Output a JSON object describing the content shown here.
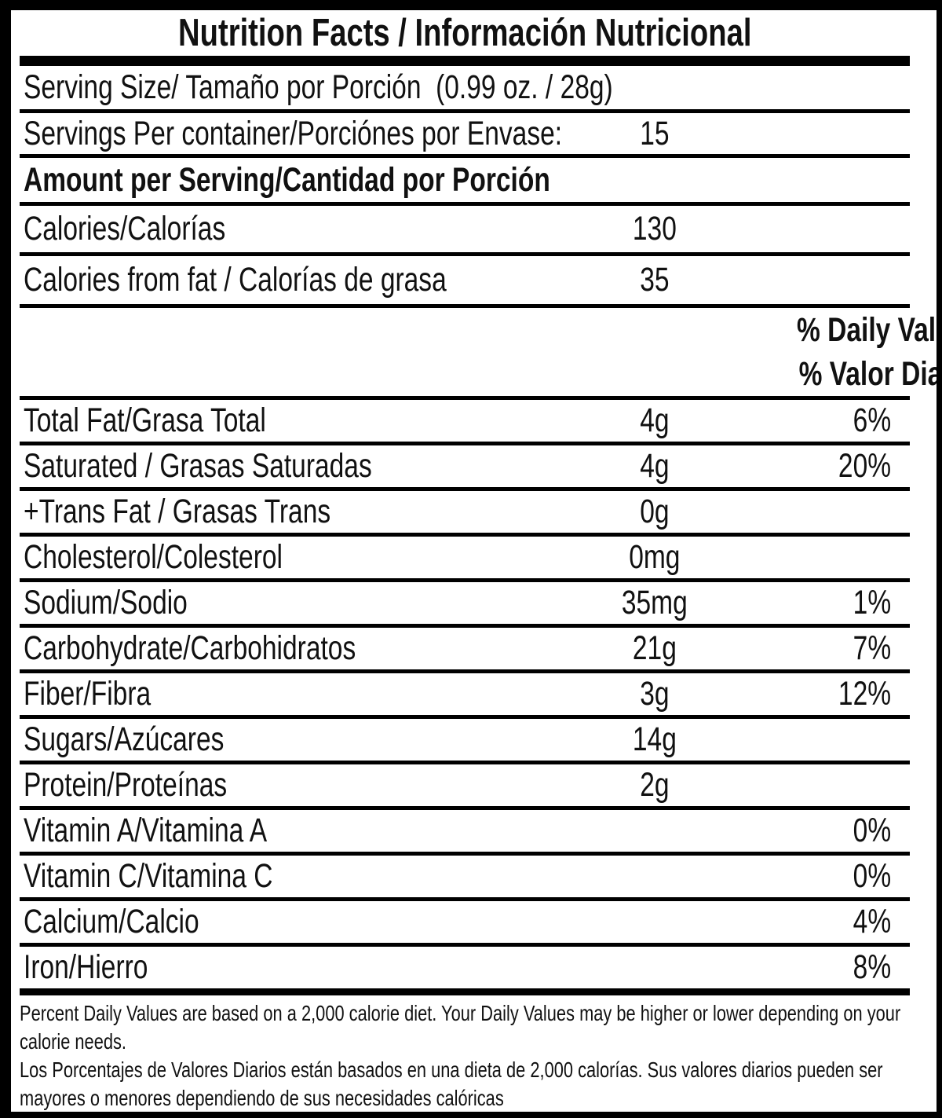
{
  "title": "Nutrition Facts / Información Nutricional",
  "serving": {
    "size": "Serving Size/ Tamaño por Porción  (0.99 oz. / 28g)",
    "per_container_label": "Servings Per container/Porciónes por Envase:",
    "per_container_value": "15"
  },
  "amount_per_serving_heading": "Amount per Serving/Cantidad por Porción",
  "calories": {
    "label": "Calories/Calorías",
    "value": "130"
  },
  "calories_from_fat": {
    "label": "Calories from fat / Calorías de grasa",
    "value": "35"
  },
  "daily_value_header": {
    "en": "% Daily Value",
    "es": "% Valor Diario"
  },
  "nutrients": [
    {
      "label": "Total Fat/Grasa Total",
      "amount": "4g",
      "percent": "6%"
    },
    {
      "label": "Saturated / Grasas Saturadas",
      "amount": "4g",
      "percent": "20%"
    },
    {
      "label": "+Trans Fat / Grasas Trans",
      "amount": "0g",
      "percent": ""
    },
    {
      "label": "Cholesterol/Colesterol",
      "amount": "0mg",
      "percent": ""
    },
    {
      "label": "Sodium/Sodio",
      "amount": "35mg",
      "percent": "1%"
    },
    {
      "label": "Carbohydrate/Carbohidratos",
      "amount": "21g",
      "percent": "7%"
    },
    {
      "label": "Fiber/Fibra",
      "amount": "3g",
      "percent": "12%"
    },
    {
      "label": "Sugars/Azúcares",
      "amount": "14g",
      "percent": ""
    },
    {
      "label": "Protein/Proteínas",
      "amount": "2g",
      "percent": ""
    },
    {
      "label": "Vitamin A/Vitamina A",
      "amount": "",
      "percent": "0%"
    },
    {
      "label": "Vitamin C/Vitamina C",
      "amount": "",
      "percent": "0%"
    },
    {
      "label": "Calcium/Calcio",
      "amount": "",
      "percent": "4%"
    },
    {
      "label": "Iron/Hierro",
      "amount": "",
      "percent": "8%"
    }
  ],
  "footnotes": {
    "en": "Percent Daily Values are based on a 2,000 calorie diet. Your Daily Values may be higher or lower depending on your calorie needs.",
    "es": "Los Porcentajes de Valores Diarios están basados en una dieta de 2,000 calorías. Sus valores diarios pueden ser mayores o menores dependiendo de sus necesidades calóricas"
  },
  "colors": {
    "background": "#ffffff",
    "border": "#000000",
    "text": "#111111"
  }
}
